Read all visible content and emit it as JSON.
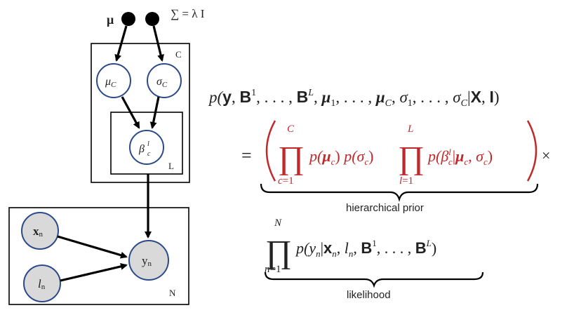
{
  "graph": {
    "top_nodes": {
      "mu_label": "μ",
      "sigma_label": "∑ = λ I"
    },
    "plate_c": {
      "label": "C",
      "node_mu": "μ",
      "node_mu_sub": "C",
      "node_sigma": "σ",
      "node_sigma_sub": "C"
    },
    "plate_l": {
      "label": "L",
      "node_beta": "β",
      "node_beta_sub": "c",
      "node_beta_sup": "l"
    },
    "plate_n": {
      "label": "N",
      "node_x": "x",
      "node_x_sub": "n",
      "node_l": "l",
      "node_l_sub": "n",
      "node_y": "y",
      "node_y_sub": "n"
    },
    "colors": {
      "node_stroke": "#2c4a8a",
      "observed_fill": "#d9d9d9",
      "arrow": "#000000",
      "prior": "#c0282a"
    }
  },
  "equation": {
    "lhs": "p(𝐲, 𝐁¹, . . . , 𝐁ᴸ, 𝛍₁, . . . , 𝛍_C, σ₁, . . . , σ_C|𝐗, 𝐥)",
    "prior_term": "∏ p(𝛍_c) p(σ_c) ∏ p(β_c^l|𝛍_c, σ_c)",
    "prior_label": "hierarchical prior",
    "likelihood_term": "∏ p(y_n|𝐱_n, l_n, 𝐁¹, . . . , 𝐁ᴸ)",
    "likelihood_label": "likelihood"
  }
}
